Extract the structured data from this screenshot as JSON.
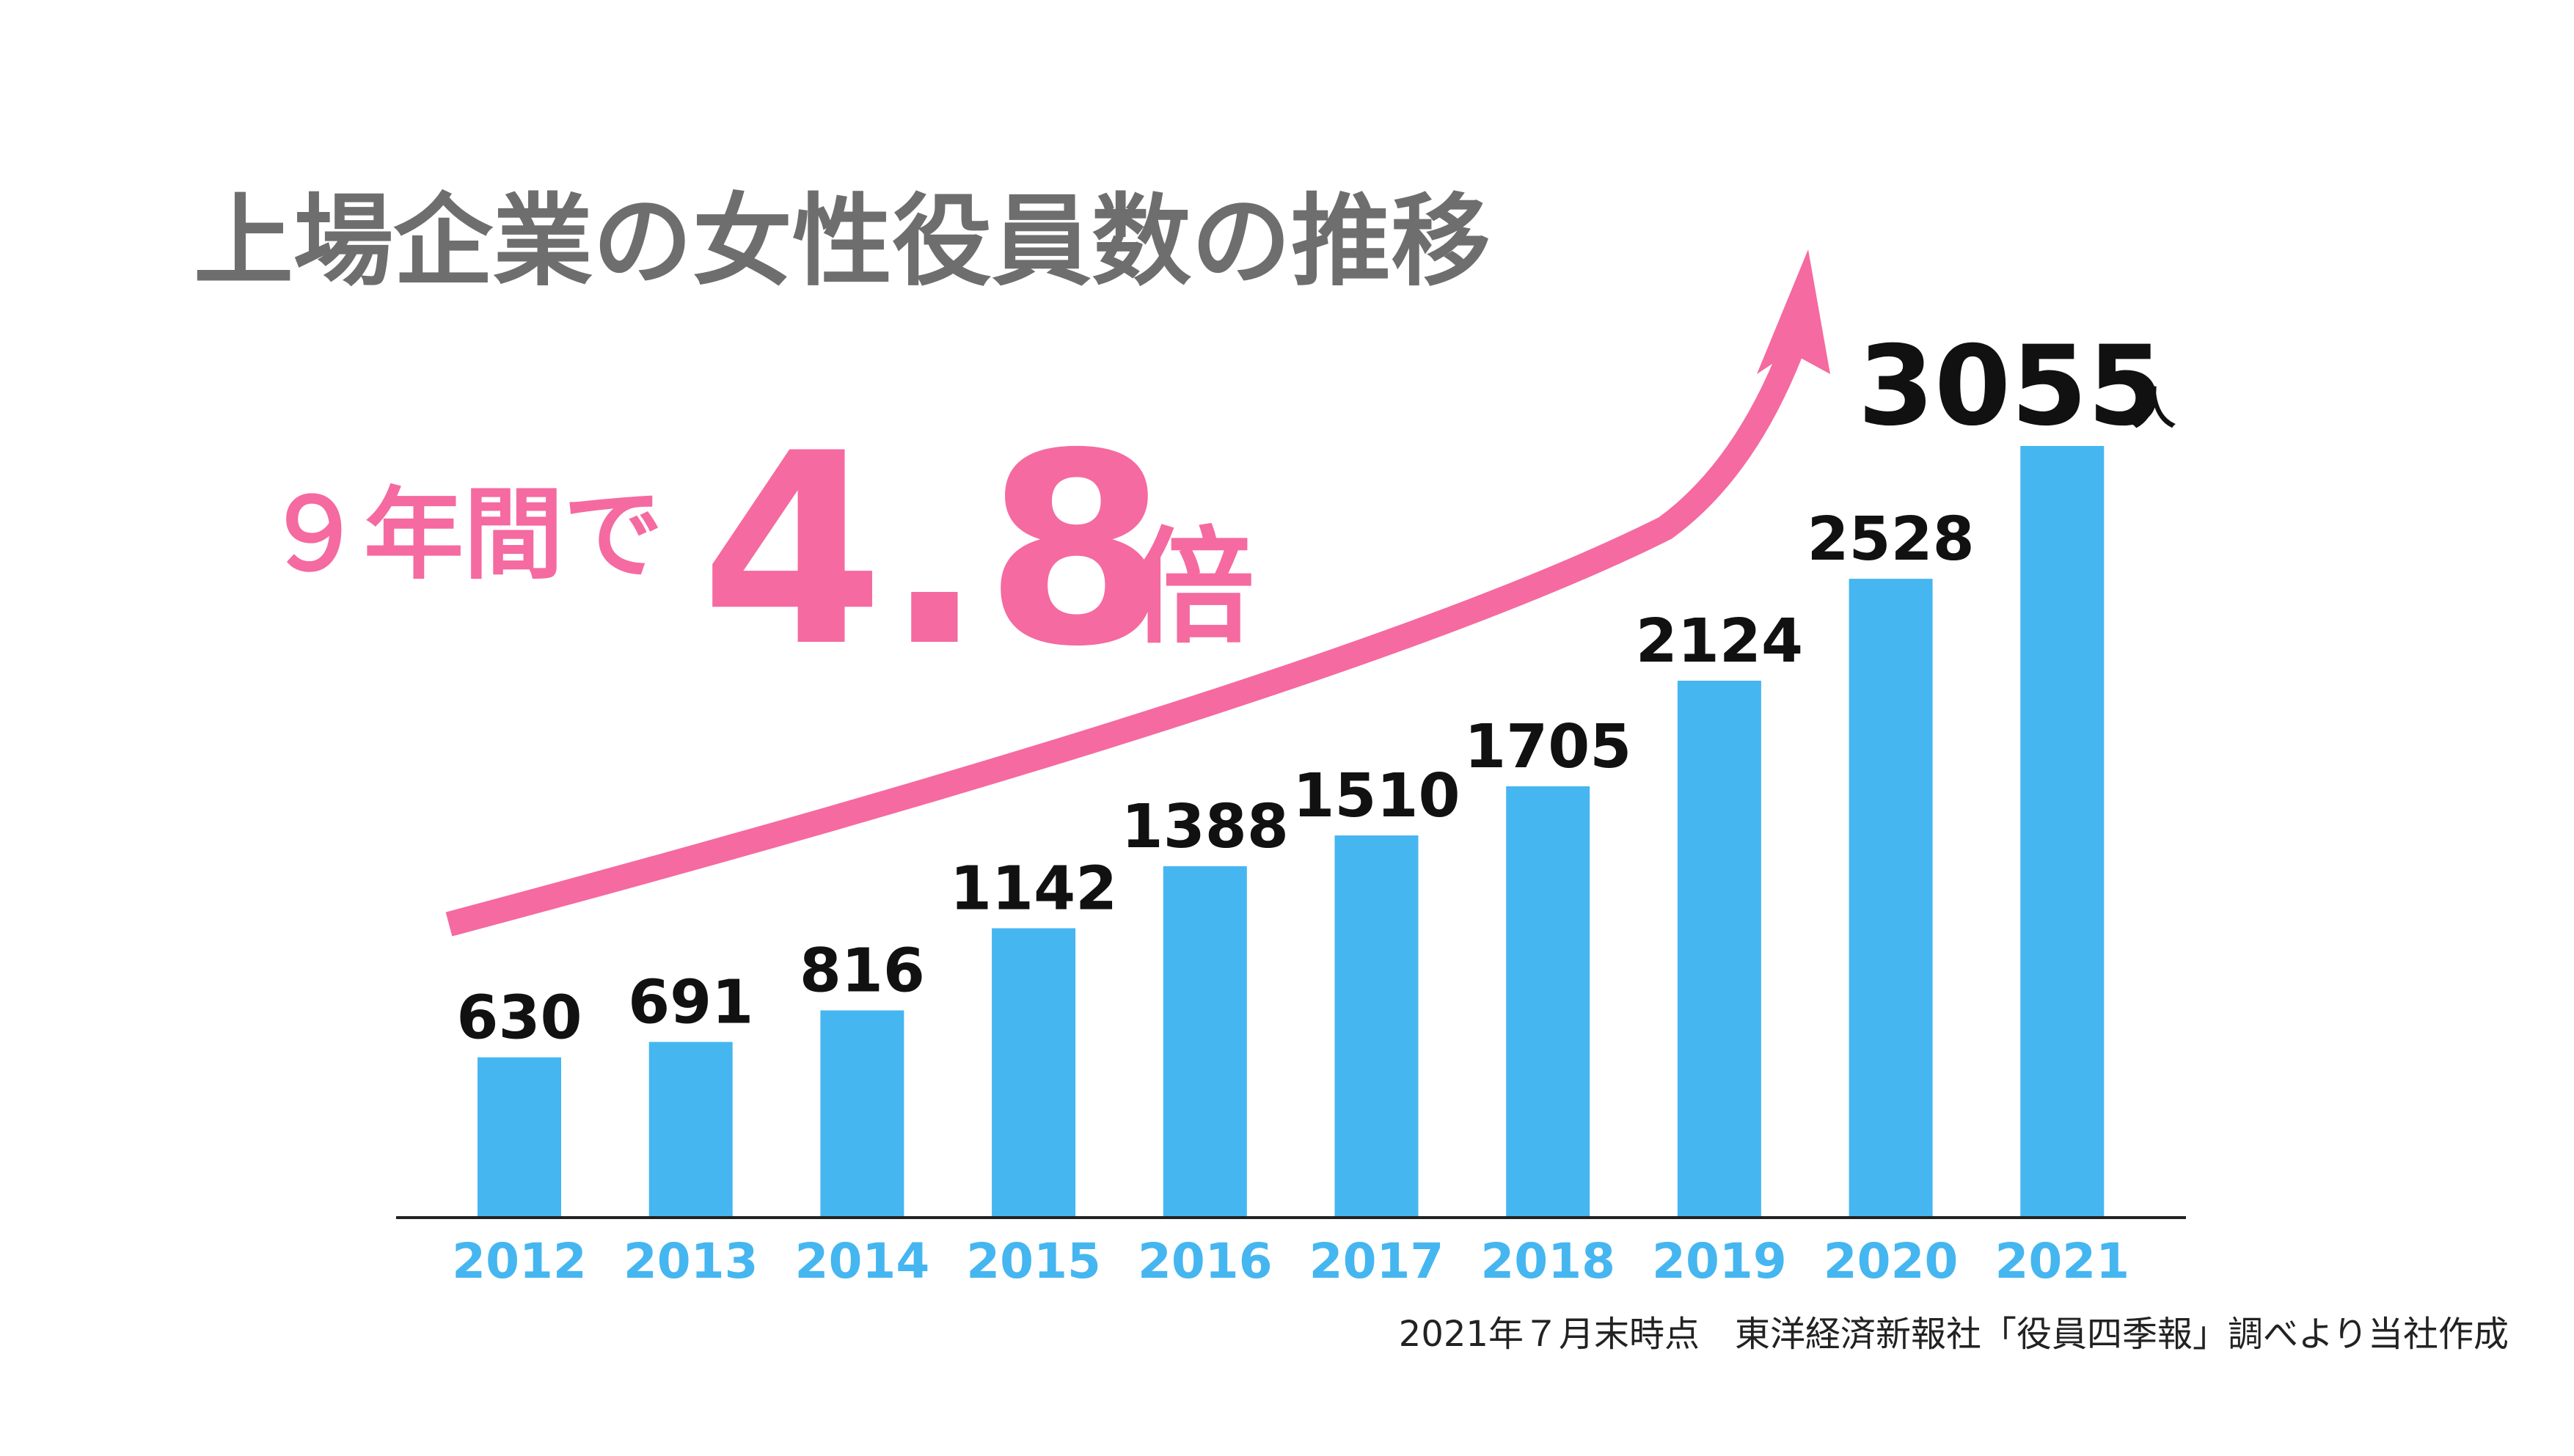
{
  "chart_data": {
    "type": "bar",
    "title": "上場企業の女性役員数の推移",
    "categories": [
      "2012",
      "2013",
      "2014",
      "2015",
      "2016",
      "2017",
      "2018",
      "2019",
      "2020",
      "2021"
    ],
    "values": [
      630,
      691,
      816,
      1142,
      1388,
      1510,
      1705,
      2124,
      2528,
      3055
    ],
    "ylim": [
      0,
      3055
    ],
    "last_value_unit": "人",
    "grid": false,
    "legend": "none",
    "annotation": {
      "prefix": "９年間で",
      "number": "4.8",
      "suffix": "倍"
    },
    "source": "2021年７月末時点　東洋経済新報社「役員四季報」調べより当社作成"
  },
  "colors": {
    "bar": "#45b6f0",
    "tick_label": "#45b6f0",
    "value_label": "#111111",
    "title": "#6e6e6e",
    "accent": "#f56aa0",
    "axis": "#222222",
    "source": "#222222"
  }
}
